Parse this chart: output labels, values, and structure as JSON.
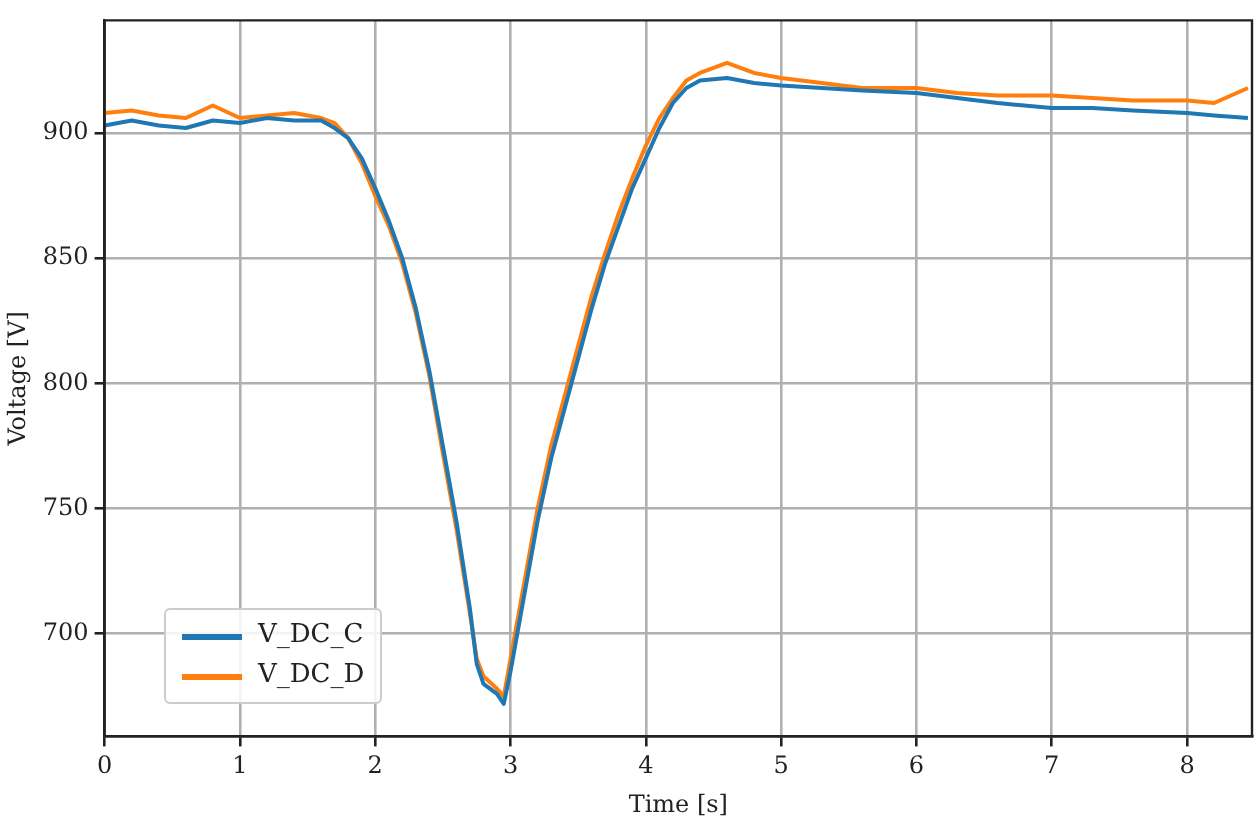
{
  "chart_data": {
    "type": "line",
    "xlabel": "Time [s]",
    "ylabel": "Voltage [V]",
    "xlim": [
      0,
      8.48
    ],
    "ylim": [
      659,
      945
    ],
    "xticks": [
      0,
      1,
      2,
      3,
      4,
      5,
      6,
      7,
      8
    ],
    "yticks": [
      700,
      750,
      800,
      850,
      900
    ],
    "grid": true,
    "legend": "bottom left",
    "marker": "none",
    "line_style": "solid",
    "x": [
      0,
      0.2,
      0.4,
      0.6,
      0.8,
      1.0,
      1.2,
      1.4,
      1.6,
      1.7,
      1.8,
      1.9,
      2.0,
      2.1,
      2.2,
      2.3,
      2.4,
      2.5,
      2.6,
      2.7,
      2.75,
      2.8,
      2.9,
      2.95,
      3.0,
      3.1,
      3.2,
      3.3,
      3.4,
      3.5,
      3.6,
      3.7,
      3.8,
      3.9,
      4.0,
      4.1,
      4.2,
      4.3,
      4.4,
      4.6,
      4.8,
      5.0,
      5.3,
      5.6,
      6.0,
      6.3,
      6.6,
      7.0,
      7.3,
      7.6,
      8.0,
      8.2,
      8.45
    ],
    "series": [
      {
        "name": "V_DC_C",
        "color": "#1f77b4",
        "values": [
          903,
          905,
          903,
          902,
          905,
          904,
          906,
          905,
          905,
          902,
          898,
          890,
          878,
          865,
          850,
          830,
          805,
          775,
          745,
          710,
          688,
          680,
          676,
          672,
          685,
          715,
          745,
          770,
          790,
          810,
          830,
          848,
          863,
          878,
          890,
          902,
          912,
          918,
          921,
          922,
          920,
          919,
          918,
          917,
          916,
          914,
          912,
          910,
          910,
          909,
          908,
          907,
          906
        ]
      },
      {
        "name": "V_DC_D",
        "color": "#ff7f0e",
        "values": [
          908,
          909,
          907,
          906,
          911,
          906,
          907,
          908,
          906,
          904,
          898,
          888,
          875,
          863,
          848,
          828,
          803,
          772,
          742,
          708,
          690,
          683,
          678,
          675,
          690,
          720,
          750,
          775,
          795,
          815,
          835,
          852,
          868,
          882,
          895,
          906,
          914,
          921,
          924,
          928,
          924,
          922,
          920,
          918,
          918,
          916,
          915,
          915,
          914,
          913,
          913,
          912,
          918
        ]
      }
    ]
  }
}
